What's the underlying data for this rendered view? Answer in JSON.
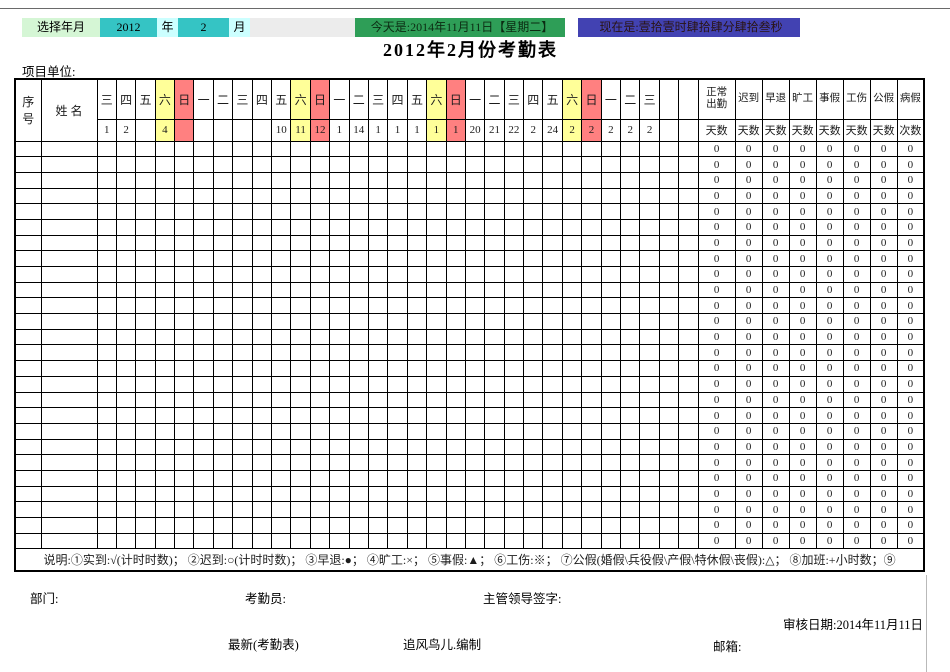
{
  "topbar": {
    "select_label": "选择年月",
    "year": "2012",
    "year_suffix": "年",
    "month": "2",
    "month_suffix": "月",
    "today": "今天是:2014年11月11日【星期二】",
    "now": "现在是:壹拾壹时肆拾肆分肆拾叁秒"
  },
  "title": "2012年2月份考勤表",
  "unit_label": "项目单位:",
  "table": {
    "seq_header": "序号",
    "name_header": "姓  名",
    "days": [
      {
        "w": "三",
        "d": "1",
        "hl": ""
      },
      {
        "w": "四",
        "d": "2",
        "hl": ""
      },
      {
        "w": "五",
        "d": "",
        "hl": ""
      },
      {
        "w": "六",
        "d": "4",
        "hl": "sat"
      },
      {
        "w": "日",
        "d": "",
        "hl": "sun"
      },
      {
        "w": "一",
        "d": "",
        "hl": ""
      },
      {
        "w": "二",
        "d": "",
        "hl": ""
      },
      {
        "w": "三",
        "d": "",
        "hl": ""
      },
      {
        "w": "四",
        "d": "",
        "hl": ""
      },
      {
        "w": "五",
        "d": "10",
        "hl": ""
      },
      {
        "w": "六",
        "d": "11",
        "hl": "sat"
      },
      {
        "w": "日",
        "d": "12",
        "hl": "sun"
      },
      {
        "w": "一",
        "d": "1",
        "hl": ""
      },
      {
        "w": "二",
        "d": "14",
        "hl": ""
      },
      {
        "w": "三",
        "d": "1",
        "hl": ""
      },
      {
        "w": "四",
        "d": "1",
        "hl": ""
      },
      {
        "w": "五",
        "d": "1",
        "hl": ""
      },
      {
        "w": "六",
        "d": "1",
        "hl": "sat"
      },
      {
        "w": "日",
        "d": "1",
        "hl": "sun"
      },
      {
        "w": "一",
        "d": "20",
        "hl": ""
      },
      {
        "w": "二",
        "d": "21",
        "hl": ""
      },
      {
        "w": "三",
        "d": "22",
        "hl": ""
      },
      {
        "w": "四",
        "d": "2",
        "hl": ""
      },
      {
        "w": "五",
        "d": "24",
        "hl": ""
      },
      {
        "w": "六",
        "d": "2",
        "hl": "sat"
      },
      {
        "w": "日",
        "d": "2",
        "hl": "sun"
      },
      {
        "w": "一",
        "d": "2",
        "hl": ""
      },
      {
        "w": "二",
        "d": "2",
        "hl": ""
      },
      {
        "w": "三",
        "d": "2",
        "hl": ""
      },
      {
        "w": "",
        "d": "",
        "hl": ""
      },
      {
        "w": "",
        "d": "",
        "hl": ""
      }
    ],
    "stats": [
      {
        "label": "正常出勤",
        "unit": "天数",
        "two_line": true
      },
      {
        "label": "迟到",
        "unit": "天数"
      },
      {
        "label": "早退",
        "unit": "天数"
      },
      {
        "label": "旷工",
        "unit": "天数"
      },
      {
        "label": "事假",
        "unit": "天数"
      },
      {
        "label": "工伤",
        "unit": "天数"
      },
      {
        "label": "公假",
        "unit": "天数"
      },
      {
        "label": "病假",
        "unit": "次数"
      }
    ],
    "body_row_count": 26,
    "stat_cell_value": "0",
    "legend": "说明:①实到:√(计时时数)；  ②迟到:○(计时时数)；  ③早退:●；  ④旷工:×；  ⑤事假:▲；  ⑥工伤:※；  ⑦公假(婚假\\兵役假\\产假\\特休假\\丧假):△；  ⑧加班:+小时数；⑨"
  },
  "footer": {
    "department": "部门:",
    "clerk": "考勤员:",
    "supervisor": "主管领导签字:",
    "audit_date": "审核日期:2014年11月11日",
    "latest": "最新(考勤表)",
    "author": "追风鸟儿.编制",
    "email": "邮箱:"
  },
  "colors": {
    "select_green": "#d5f6d5",
    "input_teal": "#35c4c4",
    "suffix_cyan": "#ccffff",
    "strip_gray": "#ececec",
    "today_green": "#2e9e57",
    "now_indigo": "#4242b2",
    "saturday_yellow": "#ffff99",
    "sunday_red": "#ff8080"
  }
}
